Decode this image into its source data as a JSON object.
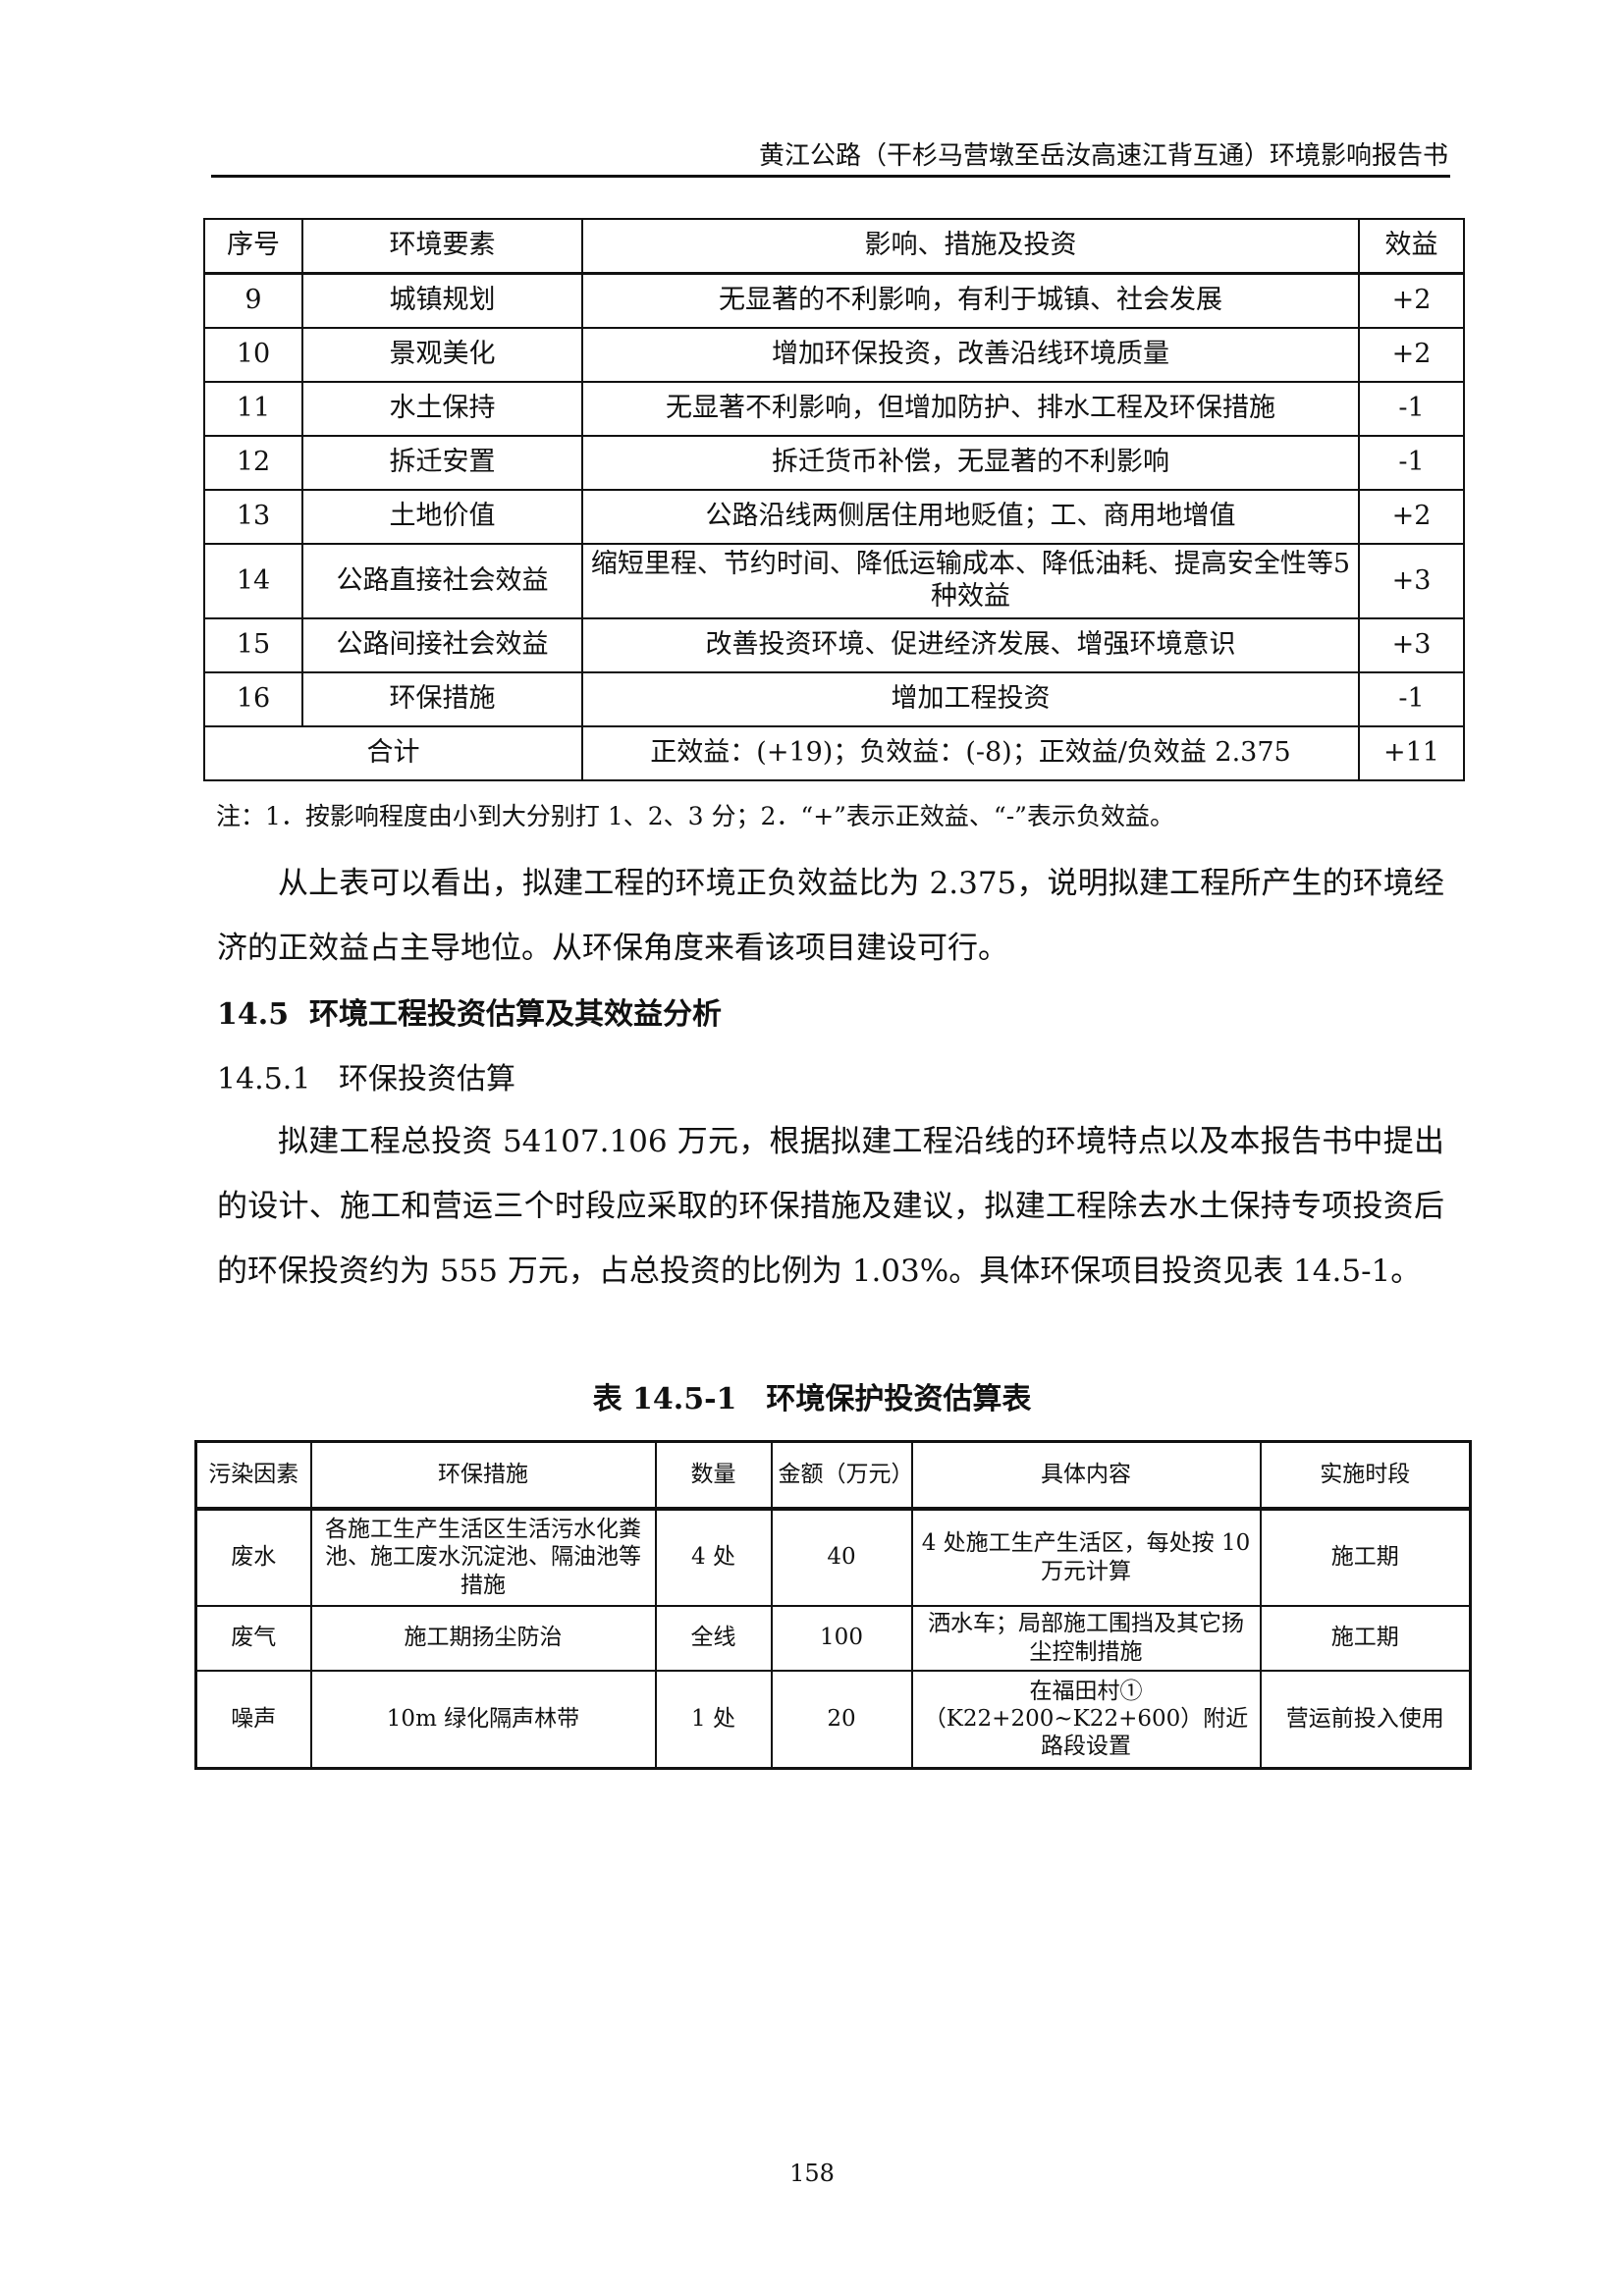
{
  "header": {
    "title": "黄江公路（干杉马营墩至岳汝高速江背互通）环境影响报告书"
  },
  "table1": {
    "columns": [
      "序号",
      "环境要素",
      "影响、措施及投资",
      "效益"
    ],
    "rows": [
      [
        "9",
        "城镇规划",
        "无显著的不利影响，有利于城镇、社会发展",
        "+2"
      ],
      [
        "10",
        "景观美化",
        "增加环保投资，改善沿线环境质量",
        "+2"
      ],
      [
        "11",
        "水土保持",
        "无显著不利影响，但增加防护、排水工程及环保措施",
        "-1"
      ],
      [
        "12",
        "拆迁安置",
        "拆迁货币补偿，无显著的不利影响",
        "-1"
      ],
      [
        "13",
        "土地价值",
        "公路沿线两侧居住用地贬值；工、商用地增值",
        "+2"
      ],
      [
        "14",
        "公路直接社会效益",
        "缩短里程、节约时间、降低运输成本、降低油耗、提高安全性等5种效益",
        "+3"
      ],
      [
        "15",
        "公路间接社会效益",
        "改善投资环境、促进经济发展、增强环境意识",
        "+3"
      ],
      [
        "16",
        "环保措施",
        "增加工程投资",
        "-1"
      ]
    ],
    "total": {
      "label": "合计",
      "detail": "正效益：(+19)；负效益：(-8)；正效益/负效益 2.375",
      "value": "+11"
    },
    "note": "注：1．按影响程度由小到大分别打 1、2、3 分；2．“+”表示正效益、“-”表示负效益。"
  },
  "paragraph1": "从上表可以看出，拟建工程的环境正负效益比为 2.375，说明拟建工程所产生的环境经济的正效益占主导地位。从环保角度来看该项目建设可行。",
  "section": {
    "number": "14.5",
    "title": "环境工程投资估算及其效益分析"
  },
  "subsection": {
    "number": "14.5.1",
    "title": "环保投资估算"
  },
  "paragraph2": "拟建工程总投资 54107.106 万元，根据拟建工程沿线的环境特点以及本报告书中提出的设计、施工和营运三个时段应采取的环保措施及建议，拟建工程除去水土保持专项投资后的环保投资约为 555 万元，占总投资的比例为 1.03%。具体环保项目投资见表 14.5-1。",
  "table2": {
    "caption": "表 14.5-1　环境保护投资估算表",
    "columns": [
      "污染因素",
      "环保措施",
      "数量",
      "金额（万元）",
      "具体内容",
      "实施时段"
    ],
    "rows": [
      [
        "废水",
        "各施工生产生活区生活污水化粪池、施工废水沉淀池、隔油池等措施",
        "4 处",
        "40",
        "4 处施工生产生活区，每处按 10 万元计算",
        "施工期"
      ],
      [
        "废气",
        "施工期扬尘防治",
        "全线",
        "100",
        "洒水车；局部施工围挡及其它扬尘控制措施",
        "施工期"
      ],
      [
        "噪声",
        "10m 绿化隔声林带",
        "1 处",
        "20",
        "在福田村①（K22+200~K22+600）附近路段设置",
        "营运前投入使用"
      ]
    ]
  },
  "page_number": "158"
}
